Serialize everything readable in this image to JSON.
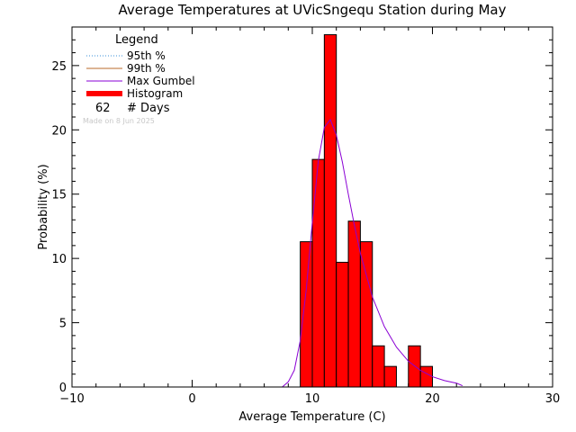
{
  "chart_data": {
    "type": "bar",
    "title": "Average Temperatures at UVicSngequ Station during May",
    "xlabel": "Average Temperature (C)",
    "ylabel": "Probability (%)",
    "xlim": [
      -10,
      30
    ],
    "ylim": [
      0,
      28
    ],
    "x_ticks": [
      -10,
      0,
      10,
      20,
      30
    ],
    "x_tick_labels": [
      "−10",
      "0",
      "10",
      "20",
      "30"
    ],
    "y_ticks": [
      0,
      5,
      10,
      15,
      20,
      25
    ],
    "y_tick_labels": [
      "0",
      "5",
      "10",
      "15",
      "20",
      "25"
    ],
    "histogram": {
      "name": "Histogram",
      "color": "#ff0000",
      "bin_width": 1,
      "bins": [
        {
          "x0": 9,
          "x1": 10,
          "value": 11.3
        },
        {
          "x0": 10,
          "x1": 11,
          "value": 17.7
        },
        {
          "x0": 11,
          "x1": 12,
          "value": 27.4
        },
        {
          "x0": 12,
          "x1": 13,
          "value": 9.7
        },
        {
          "x0": 13,
          "x1": 14,
          "value": 12.9
        },
        {
          "x0": 14,
          "x1": 15,
          "value": 11.3
        },
        {
          "x0": 15,
          "x1": 16,
          "value": 3.2
        },
        {
          "x0": 16,
          "x1": 17,
          "value": 1.6
        },
        {
          "x0": 17,
          "x1": 18,
          "value": 0
        },
        {
          "x0": 18,
          "x1": 19,
          "value": 3.2
        },
        {
          "x0": 19,
          "x1": 20,
          "value": 1.6
        }
      ]
    },
    "gumbel_curve": {
      "name": "Max Gumbel",
      "color": "#8a00d4",
      "x": [
        7.5,
        8,
        8.5,
        9,
        9.5,
        10,
        10.5,
        11,
        11.5,
        12,
        12.5,
        13,
        13.5,
        14,
        15,
        16,
        17,
        18,
        19,
        20,
        21,
        22,
        22.5
      ],
      "y": [
        0,
        0.4,
        1.3,
        3.6,
        7.6,
        12.8,
        17.6,
        20.2,
        20.8,
        19.6,
        17.5,
        15.0,
        12.6,
        10.4,
        7.0,
        4.7,
        3.1,
        2.0,
        1.3,
        0.8,
        0.5,
        0.3,
        0.1
      ]
    },
    "legend": {
      "position": "top-left",
      "title": "Legend",
      "items": [
        {
          "label": "95th %",
          "color": "#3a8fd8",
          "style": "dotted"
        },
        {
          "label": "99th %",
          "color": "#b86a2a",
          "style": "solid"
        },
        {
          "label": "Max Gumbel",
          "color": "#8a00d4",
          "style": "solid"
        },
        {
          "label": "Histogram",
          "color": "#ff0000",
          "style": "thick"
        }
      ],
      "days_count": "62",
      "days_label": "# Days",
      "note": "Made on 8 Jun 2025"
    }
  }
}
